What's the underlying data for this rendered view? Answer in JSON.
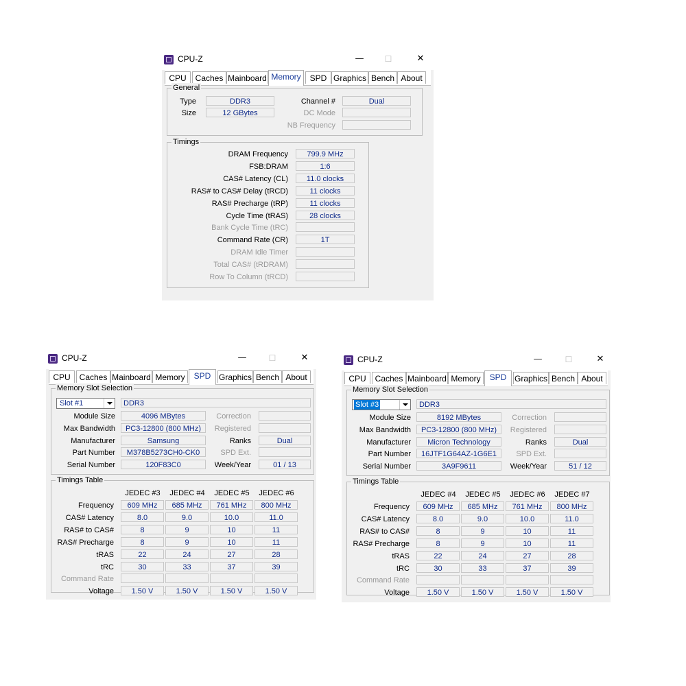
{
  "windows": [
    {
      "title": "CPU-Z",
      "tabs": [
        "CPU",
        "Caches",
        "Mainboard",
        "Memory",
        "SPD",
        "Graphics",
        "Bench",
        "About"
      ],
      "active_tab": "Memory",
      "general": {
        "label": "General",
        "type_label": "Type",
        "type": "DDR3",
        "size_label": "Size",
        "size": "12 GBytes",
        "channel_label": "Channel #",
        "channel": "Dual",
        "dcmode_label": "DC Mode",
        "dcmode": "",
        "nbfreq_label": "NB Frequency",
        "nbfreq": ""
      },
      "timings": {
        "label": "Timings",
        "rows": [
          {
            "label": "DRAM Frequency",
            "value": "799.9 MHz",
            "dim": false
          },
          {
            "label": "FSB:DRAM",
            "value": "1:6",
            "dim": false
          },
          {
            "label": "CAS# Latency (CL)",
            "value": "11.0 clocks",
            "dim": false
          },
          {
            "label": "RAS# to CAS# Delay (tRCD)",
            "value": "11 clocks",
            "dim": false
          },
          {
            "label": "RAS# Precharge (tRP)",
            "value": "11 clocks",
            "dim": false
          },
          {
            "label": "Cycle Time (tRAS)",
            "value": "28 clocks",
            "dim": false
          },
          {
            "label": "Bank Cycle Time (tRC)",
            "value": "",
            "dim": true
          },
          {
            "label": "Command Rate (CR)",
            "value": "1T",
            "dim": false
          },
          {
            "label": "DRAM Idle Timer",
            "value": "",
            "dim": true
          },
          {
            "label": "Total CAS# (tRDRAM)",
            "value": "",
            "dim": true
          },
          {
            "label": "Row To Column (tRCD)",
            "value": "",
            "dim": true
          }
        ]
      }
    },
    {
      "title": "CPU-Z",
      "tabs": [
        "CPU",
        "Caches",
        "Mainboard",
        "Memory",
        "SPD",
        "Graphics",
        "Bench",
        "About"
      ],
      "active_tab": "SPD",
      "slot_group_label": "Memory Slot Selection",
      "slot": "Slot #1",
      "slot_type": "DDR3",
      "module": {
        "module_size_label": "Module Size",
        "module_size": "4096 MBytes",
        "max_bw_label": "Max Bandwidth",
        "max_bw": "PC3-12800 (800 MHz)",
        "manufacturer_label": "Manufacturer",
        "manufacturer": "Samsung",
        "part_label": "Part Number",
        "part": "M378B5273CH0-CK0",
        "serial_label": "Serial Number",
        "serial": "120F83C0",
        "correction_label": "Correction",
        "correction": "",
        "registered_label": "Registered",
        "registered": "",
        "ranks_label": "Ranks",
        "ranks": "Dual",
        "spd_ext_label": "SPD Ext.",
        "spd_ext": "",
        "week_label": "Week/Year",
        "week": "01 / 13"
      },
      "timings_table": {
        "label": "Timings Table",
        "columns": [
          "JEDEC #3",
          "JEDEC #4",
          "JEDEC #5",
          "JEDEC #6"
        ],
        "rows": [
          {
            "label": "Frequency",
            "dim": false,
            "values": [
              "609 MHz",
              "685 MHz",
              "761 MHz",
              "800 MHz"
            ]
          },
          {
            "label": "CAS# Latency",
            "dim": false,
            "values": [
              "8.0",
              "9.0",
              "10.0",
              "11.0"
            ]
          },
          {
            "label": "RAS# to CAS#",
            "dim": false,
            "values": [
              "8",
              "9",
              "10",
              "11"
            ]
          },
          {
            "label": "RAS# Precharge",
            "dim": false,
            "values": [
              "8",
              "9",
              "10",
              "11"
            ]
          },
          {
            "label": "tRAS",
            "dim": false,
            "values": [
              "22",
              "24",
              "27",
              "28"
            ]
          },
          {
            "label": "tRC",
            "dim": false,
            "values": [
              "30",
              "33",
              "37",
              "39"
            ]
          },
          {
            "label": "Command Rate",
            "dim": true,
            "values": [
              "",
              "",
              "",
              ""
            ]
          },
          {
            "label": "Voltage",
            "dim": false,
            "values": [
              "1.50 V",
              "1.50 V",
              "1.50 V",
              "1.50 V"
            ]
          }
        ]
      }
    },
    {
      "title": "CPU-Z",
      "tabs": [
        "CPU",
        "Caches",
        "Mainboard",
        "Memory",
        "SPD",
        "Graphics",
        "Bench",
        "About"
      ],
      "active_tab": "SPD",
      "slot_group_label": "Memory Slot Selection",
      "slot": "Slot #3",
      "slot_type": "DDR3",
      "module": {
        "module_size_label": "Module Size",
        "module_size": "8192 MBytes",
        "max_bw_label": "Max Bandwidth",
        "max_bw": "PC3-12800 (800 MHz)",
        "manufacturer_label": "Manufacturer",
        "manufacturer": "Micron Technology",
        "part_label": "Part Number",
        "part": "16JTF1G64AZ-1G6E1",
        "serial_label": "Serial Number",
        "serial": "3A9F9611",
        "correction_label": "Correction",
        "correction": "",
        "registered_label": "Registered",
        "registered": "",
        "ranks_label": "Ranks",
        "ranks": "Dual",
        "spd_ext_label": "SPD Ext.",
        "spd_ext": "",
        "week_label": "Week/Year",
        "week": "51 / 12"
      },
      "timings_table": {
        "label": "Timings Table",
        "columns": [
          "JEDEC #4",
          "JEDEC #5",
          "JEDEC #6",
          "JEDEC #7"
        ],
        "rows": [
          {
            "label": "Frequency",
            "dim": false,
            "values": [
              "609 MHz",
              "685 MHz",
              "761 MHz",
              "800 MHz"
            ]
          },
          {
            "label": "CAS# Latency",
            "dim": false,
            "values": [
              "8.0",
              "9.0",
              "10.0",
              "11.0"
            ]
          },
          {
            "label": "RAS# to CAS#",
            "dim": false,
            "values": [
              "8",
              "9",
              "10",
              "11"
            ]
          },
          {
            "label": "RAS# Precharge",
            "dim": false,
            "values": [
              "8",
              "9",
              "10",
              "11"
            ]
          },
          {
            "label": "tRAS",
            "dim": false,
            "values": [
              "22",
              "24",
              "27",
              "28"
            ]
          },
          {
            "label": "tRC",
            "dim": false,
            "values": [
              "30",
              "33",
              "37",
              "39"
            ]
          },
          {
            "label": "Command Rate",
            "dim": true,
            "values": [
              "",
              "",
              "",
              ""
            ]
          },
          {
            "label": "Voltage",
            "dim": false,
            "values": [
              "1.50 V",
              "1.50 V",
              "1.50 V",
              "1.50 V"
            ]
          }
        ]
      }
    }
  ]
}
